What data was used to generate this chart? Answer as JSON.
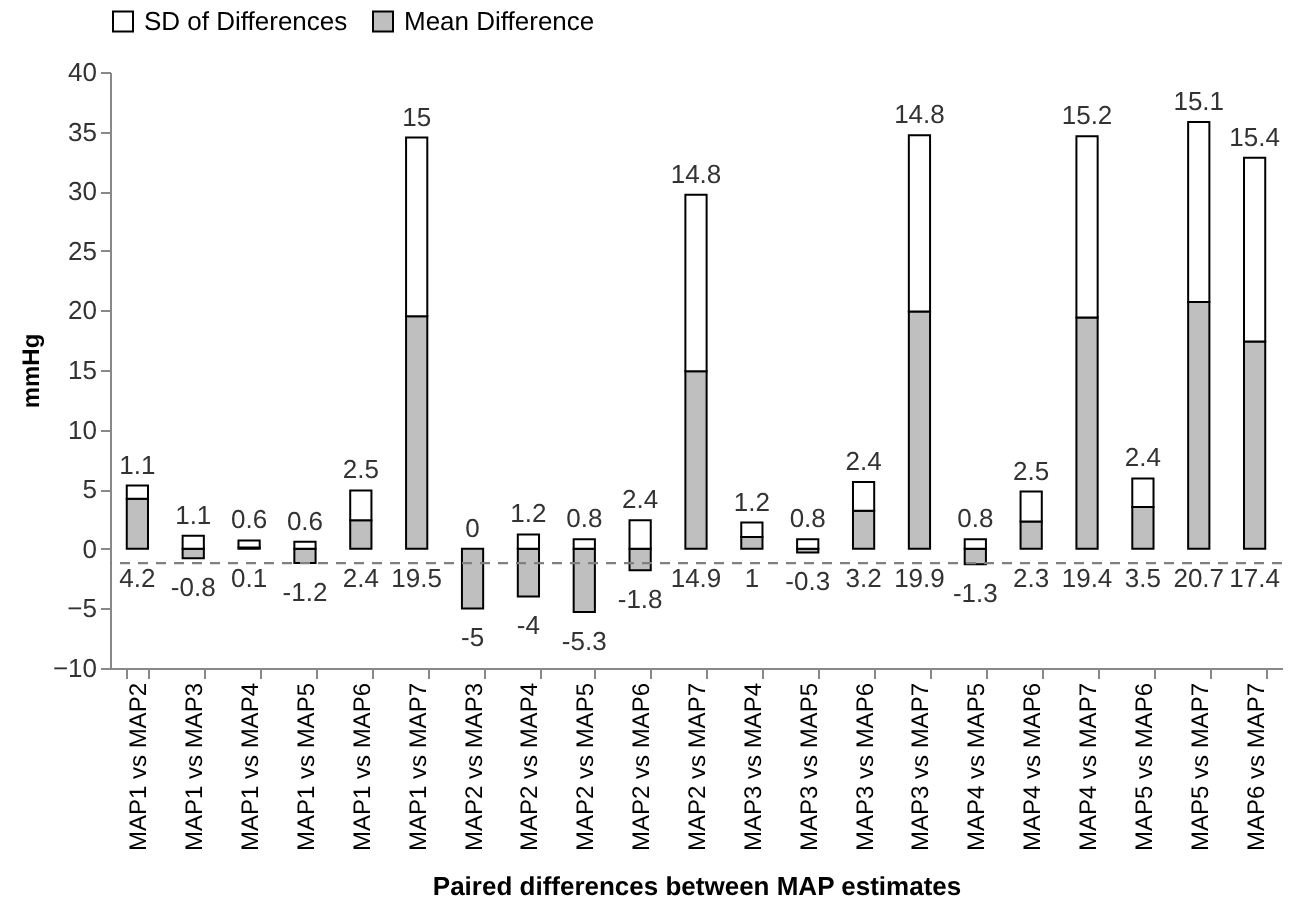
{
  "chart_data": {
    "type": "bar",
    "stacked": true,
    "xlabel": "Paired differences between MAP estimates",
    "ylabel": "mmHg",
    "categories": [
      "MAP1 vs MAP2",
      "MAP1 vs MAP3",
      "MAP1 vs MAP4",
      "MAP1 vs MAP5",
      "MAP1 vs MAP6",
      "MAP1 vs MAP7",
      "MAP2 vs MAP3",
      "MAP2 vs MAP4",
      "MAP2 vs MAP5",
      "MAP2 vs MAP6",
      "MAP2 vs MAP7",
      "MAP3 vs MAP4",
      "MAP3 vs MAP5",
      "MAP3 vs MAP6",
      "MAP3 vs MAP7",
      "MAP4 vs MAP5",
      "MAP4 vs MAP6",
      "MAP4 vs MAP7",
      "MAP5 vs MAP6",
      "MAP5 vs MAP7",
      "MAP6 vs MAP7"
    ],
    "series": [
      {
        "name": "Mean Difference",
        "color": "#bfbfbf",
        "values": [
          4.2,
          -0.8,
          0.1,
          -1.2,
          2.4,
          19.5,
          -5,
          -4,
          -5.3,
          -1.8,
          14.9,
          1,
          -0.3,
          3.2,
          19.9,
          -1.3,
          2.3,
          19.4,
          3.5,
          20.7,
          17.4
        ]
      },
      {
        "name": "SD of Differences",
        "color": "#ffffff",
        "values": [
          1.1,
          1.1,
          0.6,
          0.6,
          2.5,
          15,
          0,
          1.2,
          0.8,
          2.4,
          14.8,
          1.2,
          0.8,
          2.4,
          14.8,
          0.8,
          2.5,
          15.2,
          2.4,
          15.1,
          15.4
        ]
      }
    ],
    "ylim": [
      -10,
      40
    ],
    "yticks": [
      -10,
      -5,
      0,
      5,
      10,
      15,
      20,
      25,
      30,
      35,
      40
    ],
    "grid": false,
    "legend": "top",
    "data_labels": true,
    "ref_lines": [
      {
        "axis": "y",
        "value": -1.2,
        "color": "#808080",
        "line_style": "dashed"
      }
    ]
  }
}
